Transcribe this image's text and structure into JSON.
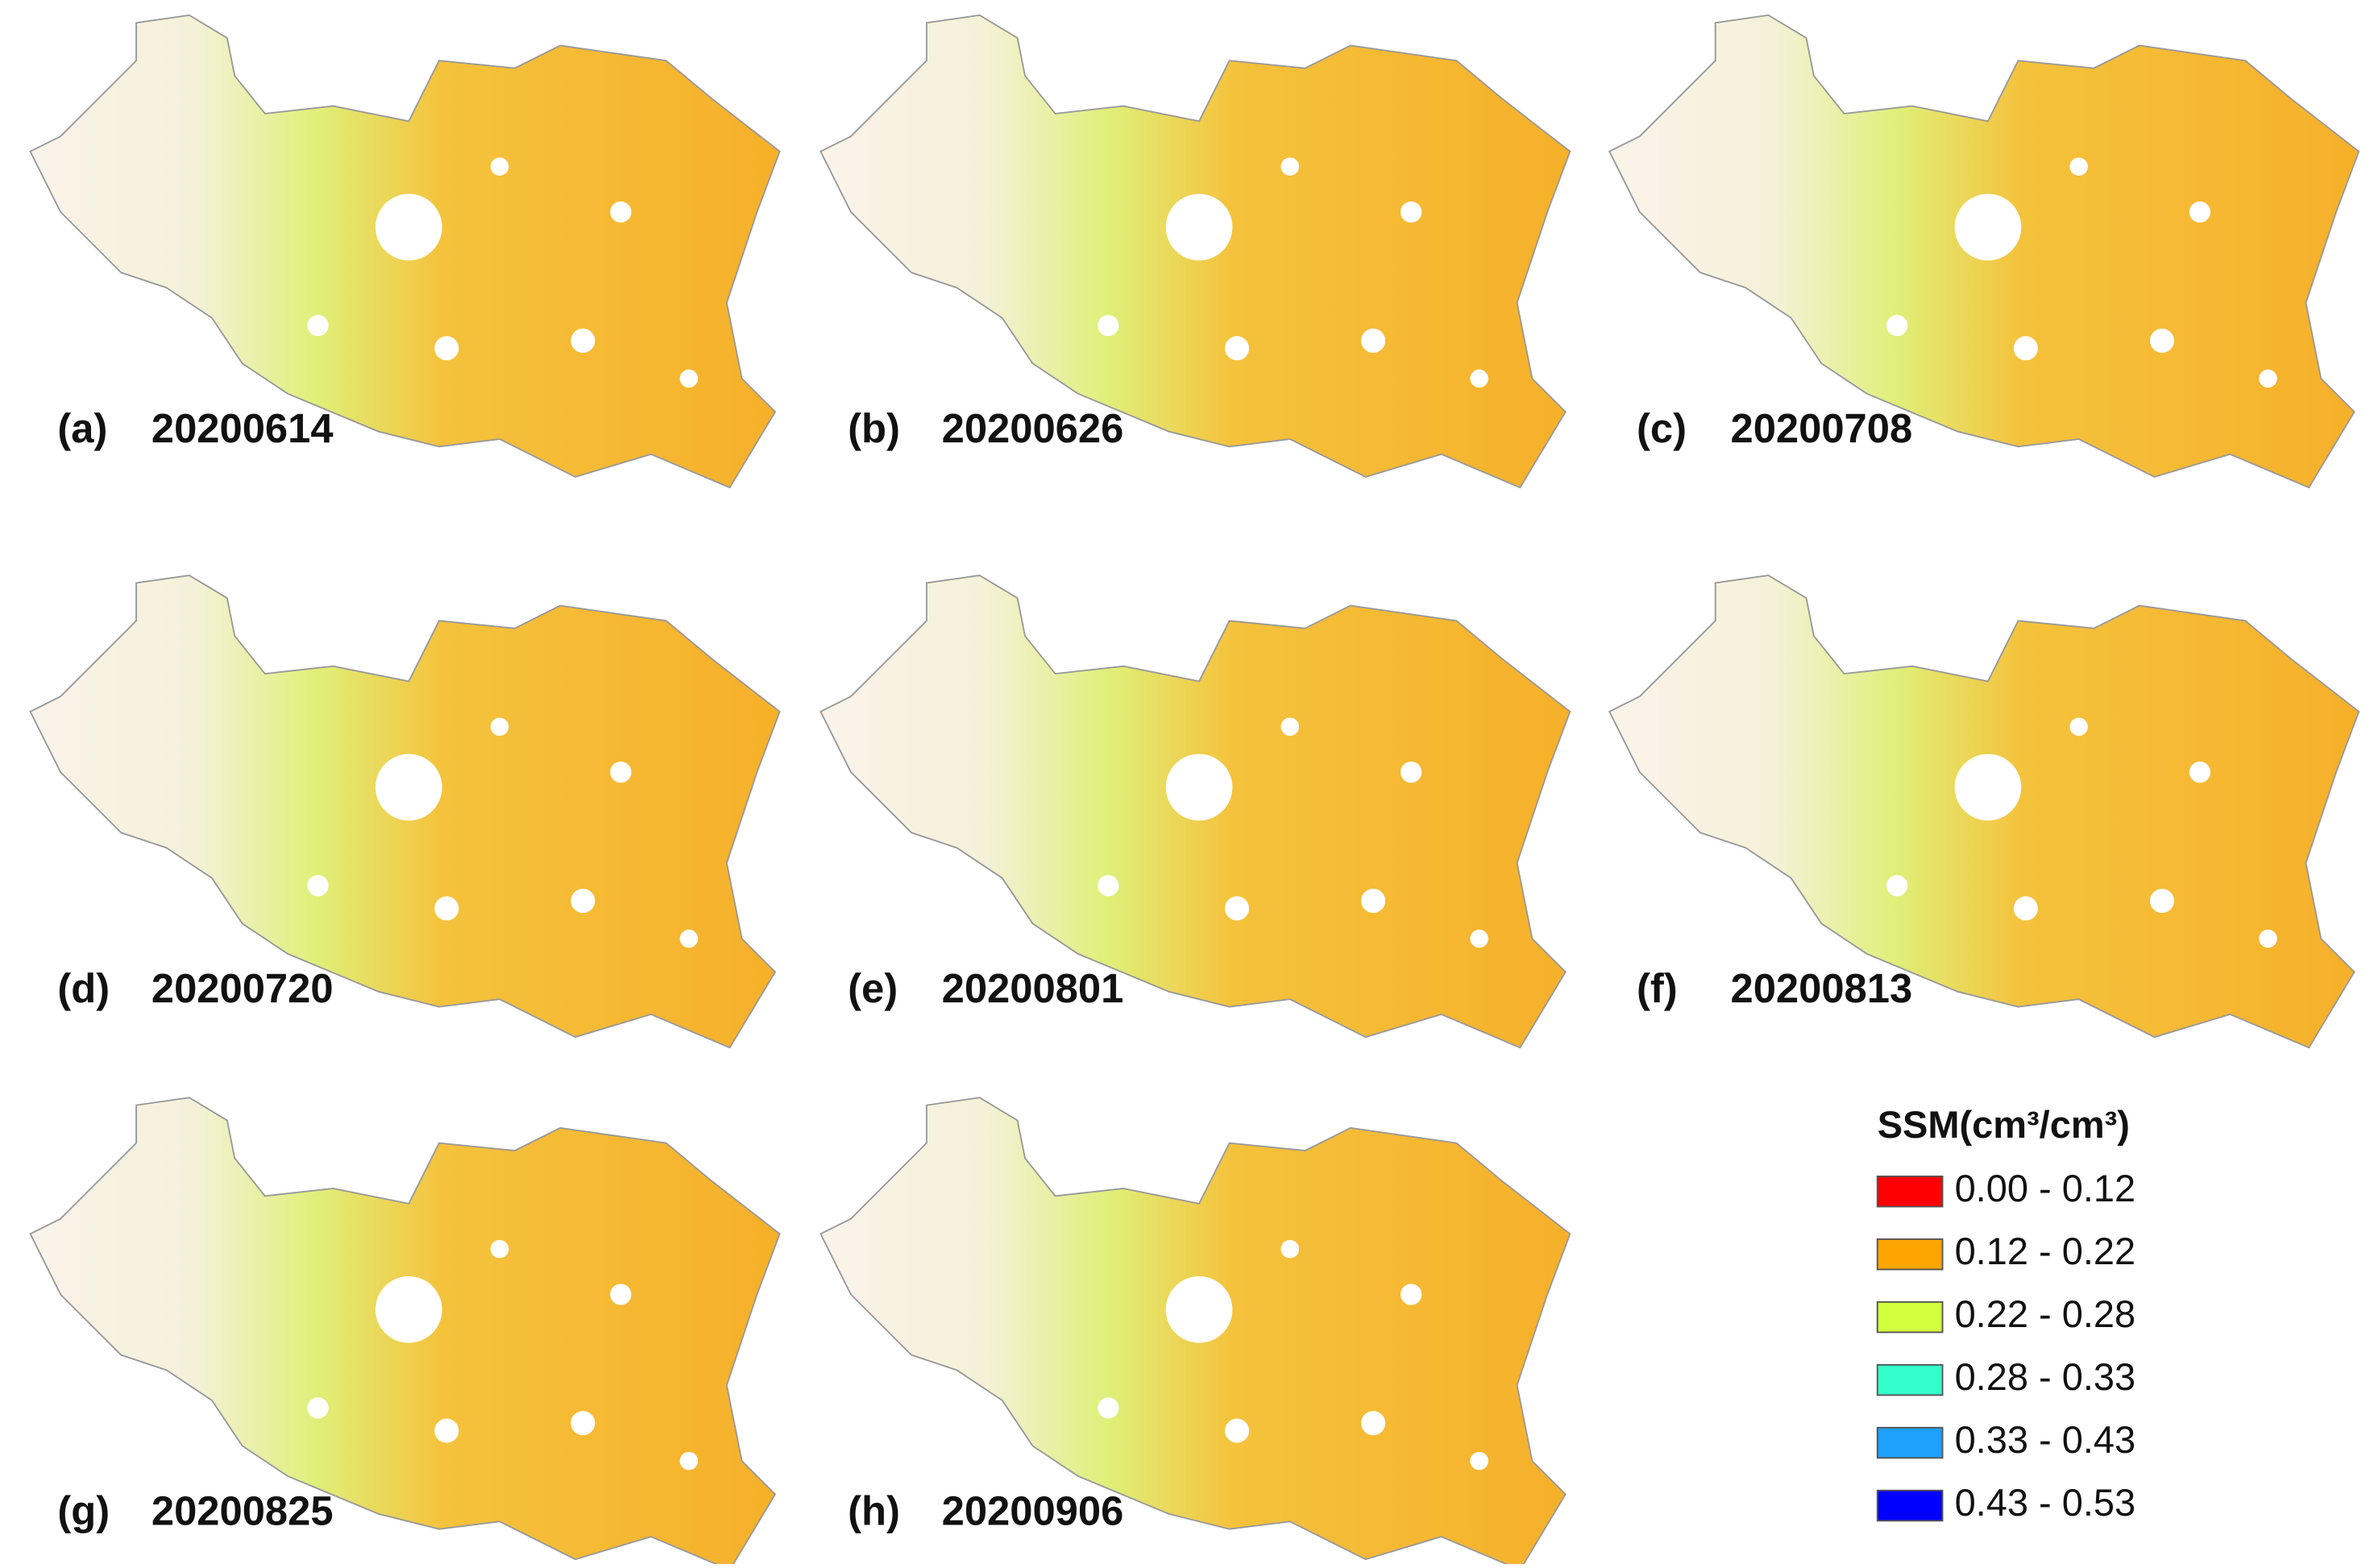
{
  "panels": [
    {
      "letter": "(a)",
      "date": "20200614"
    },
    {
      "letter": "(b)",
      "date": "20200626"
    },
    {
      "letter": "(c)",
      "date": "20200708"
    },
    {
      "letter": "(d)",
      "date": "20200720"
    },
    {
      "letter": "(e)",
      "date": "20200801"
    },
    {
      "letter": "(f)",
      "date": "20200813"
    },
    {
      "letter": "(g)",
      "date": "20200825"
    },
    {
      "letter": "(h)",
      "date": "20200906"
    }
  ],
  "legend": {
    "title": "SSM(cm³/cm³)",
    "items": [
      {
        "label": "0.00 - 0.12",
        "color": "#ff0000"
      },
      {
        "label": "0.12 - 0.22",
        "color": "#ffa500"
      },
      {
        "label": "0.22 - 0.28",
        "color": "#d2ff3c"
      },
      {
        "label": "0.28 - 0.33",
        "color": "#33ffcc"
      },
      {
        "label": "0.33 - 0.43",
        "color": "#1ea0ff"
      },
      {
        "label": "0.43 - 0.53",
        "color": "#0000ff"
      }
    ]
  }
}
